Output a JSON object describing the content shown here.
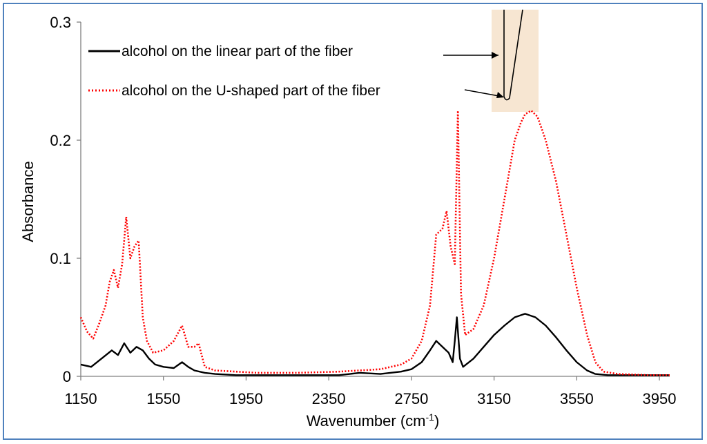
{
  "chart_data": {
    "type": "line",
    "xlabel": "Wavenumber (cm",
    "xlabel_sup": "-1",
    "xlabel_end": ")",
    "ylabel": "Absorbance",
    "xlim": [
      1150,
      4000
    ],
    "ylim": [
      0,
      0.3
    ],
    "x_ticks": [
      1150,
      1550,
      1950,
      2350,
      2750,
      3150,
      3550,
      3950
    ],
    "y_ticks": [
      0,
      0.1,
      0.2,
      0.3
    ],
    "y_tick_labels": [
      "0",
      "0.1",
      "0.2",
      "0.3"
    ],
    "grid": false,
    "legend_position": "top-left",
    "inset": "fiber sketch at top, arrows marking the linear part and the U-shaped tip",
    "series": [
      {
        "name": "alcohol on the linear part of the fiber",
        "color": "#000000",
        "style": "solid",
        "x": [
          1150,
          1200,
          1250,
          1300,
          1330,
          1360,
          1390,
          1420,
          1450,
          1480,
          1510,
          1550,
          1600,
          1640,
          1670,
          1700,
          1750,
          1800,
          1900,
          2000,
          2200,
          2400,
          2500,
          2600,
          2700,
          2750,
          2800,
          2840,
          2870,
          2900,
          2930,
          2950,
          2960,
          2970,
          2985,
          3000,
          3050,
          3100,
          3150,
          3200,
          3250,
          3300,
          3350,
          3400,
          3450,
          3500,
          3550,
          3600,
          3640,
          3700,
          3800,
          3900,
          4000
        ],
        "y": [
          0.01,
          0.008,
          0.015,
          0.022,
          0.018,
          0.028,
          0.02,
          0.025,
          0.022,
          0.015,
          0.01,
          0.008,
          0.007,
          0.012,
          0.008,
          0.005,
          0.003,
          0.002,
          0.001,
          0.001,
          0.001,
          0.001,
          0.003,
          0.002,
          0.004,
          0.006,
          0.012,
          0.022,
          0.03,
          0.025,
          0.02,
          0.012,
          0.03,
          0.05,
          0.015,
          0.008,
          0.015,
          0.025,
          0.035,
          0.043,
          0.05,
          0.053,
          0.05,
          0.043,
          0.033,
          0.022,
          0.012,
          0.005,
          0.002,
          0.001,
          0.001,
          0.001,
          0.001
        ]
      },
      {
        "name": "alcohol on the U-shaped part of the fiber",
        "color": "#ff0000",
        "style": "dotted",
        "x": [
          1150,
          1180,
          1210,
          1240,
          1270,
          1290,
          1310,
          1330,
          1350,
          1370,
          1390,
          1410,
          1430,
          1450,
          1470,
          1500,
          1550,
          1600,
          1640,
          1670,
          1700,
          1720,
          1750,
          1800,
          1900,
          2000,
          2200,
          2400,
          2500,
          2600,
          2700,
          2750,
          2800,
          2840,
          2870,
          2900,
          2920,
          2940,
          2960,
          2975,
          2990,
          3010,
          3050,
          3100,
          3150,
          3200,
          3250,
          3280,
          3300,
          3330,
          3360,
          3400,
          3450,
          3500,
          3550,
          3600,
          3640,
          3680,
          3750,
          3900,
          4000
        ],
        "y": [
          0.05,
          0.038,
          0.032,
          0.045,
          0.06,
          0.08,
          0.09,
          0.075,
          0.095,
          0.135,
          0.1,
          0.11,
          0.115,
          0.05,
          0.03,
          0.02,
          0.022,
          0.03,
          0.043,
          0.025,
          0.025,
          0.028,
          0.008,
          0.005,
          0.004,
          0.003,
          0.003,
          0.004,
          0.005,
          0.006,
          0.01,
          0.015,
          0.03,
          0.06,
          0.12,
          0.125,
          0.14,
          0.11,
          0.095,
          0.225,
          0.07,
          0.035,
          0.04,
          0.06,
          0.1,
          0.15,
          0.2,
          0.215,
          0.222,
          0.225,
          0.22,
          0.2,
          0.165,
          0.12,
          0.075,
          0.035,
          0.012,
          0.004,
          0.002,
          0.001,
          0.001
        ]
      }
    ]
  }
}
